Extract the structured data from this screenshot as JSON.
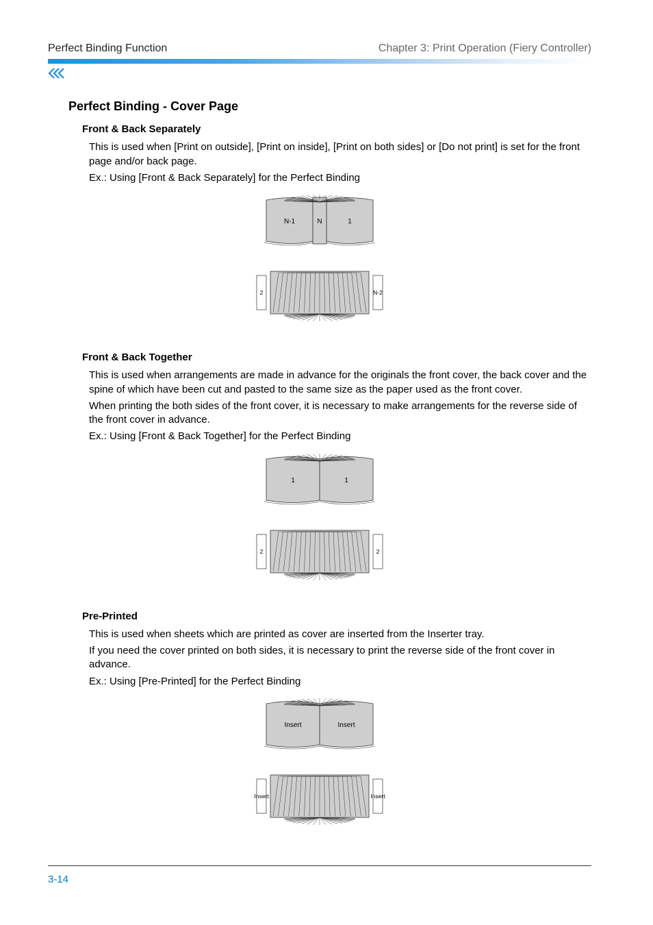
{
  "header": {
    "left": "Perfect Binding Function",
    "right": "Chapter 3: Print Operation (Fiery Controller)"
  },
  "title": "Perfect Binding - Cover Page",
  "sections": {
    "sep": {
      "heading": "Front & Back Separately",
      "body1": "This is used when [Print on outside], [Print on inside], [Print on both sides] or [Do not print] is set for the front page and/or back page.",
      "example": "Ex.: Using [Front & Back Separately] for the Perfect Binding",
      "diagram": {
        "top_left": "N-1",
        "top_mid": "N",
        "top_right": "1",
        "bot_left": "2",
        "bot_right": "N-2"
      }
    },
    "tog": {
      "heading": "Front & Back Together",
      "body1": "This is used when arrangements are made in advance for the originals the front cover, the back cover and the spine of which have been cut and pasted to the same size as the paper used as the front cover.",
      "body2": "When printing the both sides of the front cover, it is necessary to make arrangements for the reverse side of the front cover in advance.",
      "example": "Ex.: Using [Front & Back Together] for the Perfect Binding",
      "diagram": {
        "top_left": "1",
        "top_right": "1",
        "bot_left": "2",
        "bot_right": "2"
      }
    },
    "pre": {
      "heading": "Pre-Printed",
      "body1": "This is used when sheets which are printed as cover are inserted from the Inserter tray.",
      "body2": "If you need the cover printed on both sides, it is necessary to print the reverse side of the front cover in advance.",
      "example": "Ex.: Using [Pre-Printed] for the Perfect Binding",
      "diagram": {
        "top_left": "Insert",
        "top_right": "Insert",
        "bot_left": "Insert",
        "bot_right": "Insert"
      }
    }
  },
  "page_number": "3-14",
  "colors": {
    "body_text": "#000000",
    "header_right": "#666666",
    "accent_blue": "#1e90e0",
    "page_num_blue": "#0a7acc",
    "diagram_fill": "#cecece",
    "diagram_stroke": "#333333",
    "diagram_label_fontsize": 10
  }
}
